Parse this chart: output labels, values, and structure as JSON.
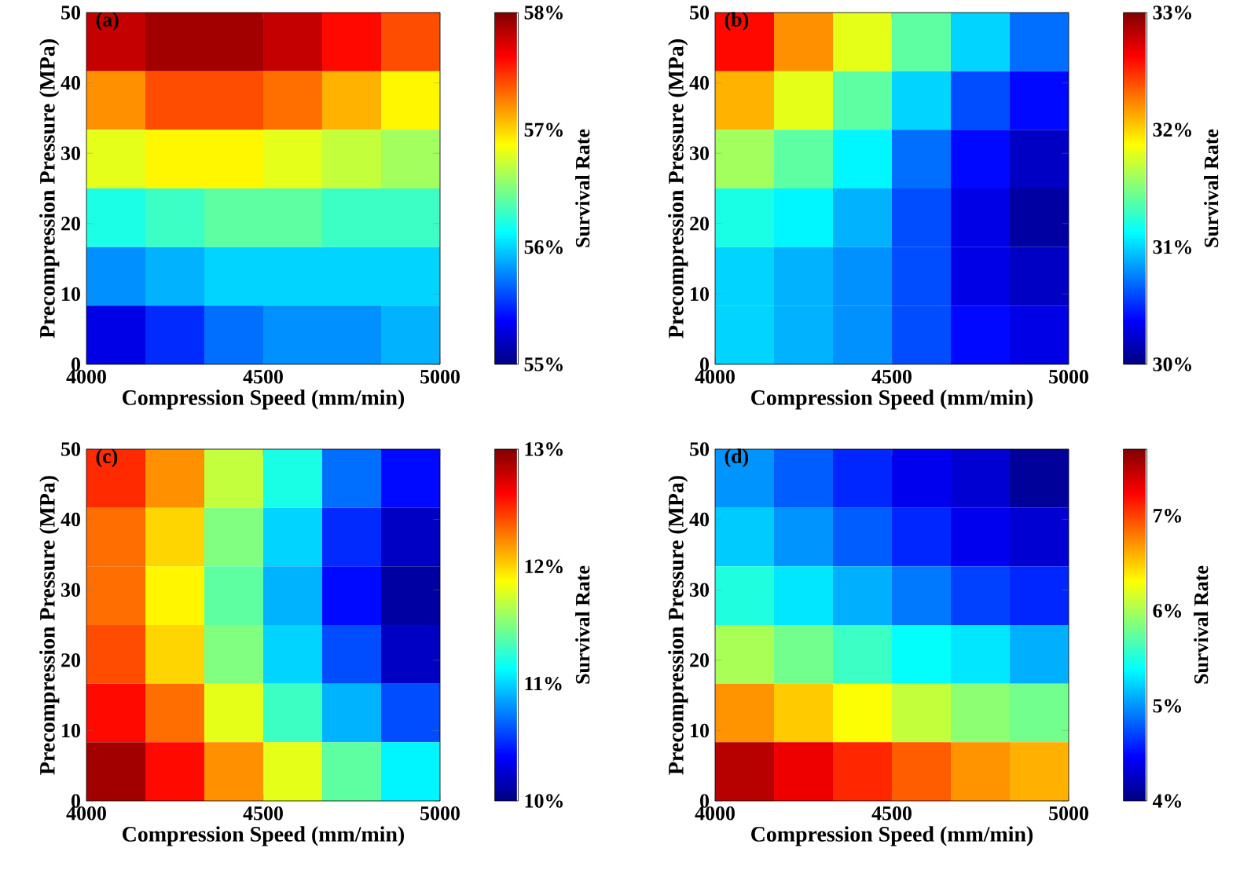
{
  "chart_data": [
    {
      "type": "heatmap",
      "title": "(a)",
      "xlabel": "Compression Speed (mm/min)",
      "ylabel": "Precompression Pressure (MPa)",
      "clabel": "Survival Rate",
      "xlim": [
        4000,
        5000
      ],
      "xticks": [
        4000,
        4500,
        5000
      ],
      "ylim": [
        0,
        50
      ],
      "yticks": [
        0,
        10,
        20,
        30,
        40,
        50
      ],
      "cells": [
        [
          57.8,
          57.9,
          57.9,
          57.8,
          57.6,
          57.4
        ],
        [
          57.2,
          57.4,
          57.4,
          57.3,
          57.1,
          56.9
        ],
        [
          56.8,
          56.9,
          56.9,
          56.8,
          56.7,
          56.6
        ],
        [
          56.2,
          56.3,
          56.4,
          56.4,
          56.3,
          56.3
        ],
        [
          55.8,
          55.9,
          56.0,
          56.0,
          56.0,
          56.0
        ],
        [
          55.3,
          55.5,
          55.7,
          55.8,
          55.8,
          55.9
        ]
      ],
      "clim": [
        55,
        58
      ],
      "cticks": [
        {
          "value": 55,
          "label": "55%"
        },
        {
          "value": 56,
          "label": "56%"
        },
        {
          "value": 57,
          "label": "57%"
        },
        {
          "value": 58,
          "label": "58%"
        }
      ]
    },
    {
      "type": "heatmap",
      "title": "(b)",
      "xlabel": "Compression Speed (mm/min)",
      "ylabel": "Precompression Pressure (MPa)",
      "clabel": "Survival Rate",
      "xlim": [
        4000,
        5000
      ],
      "xticks": [
        4000,
        4500,
        5000
      ],
      "ylim": [
        0,
        50
      ],
      "yticks": [
        0,
        10,
        20,
        30,
        40,
        50
      ],
      "cells": [
        [
          32.6,
          32.2,
          31.8,
          31.4,
          31.0,
          30.7
        ],
        [
          32.1,
          31.8,
          31.4,
          31.0,
          30.6,
          30.4
        ],
        [
          31.6,
          31.4,
          31.1,
          30.7,
          30.4,
          30.2
        ],
        [
          31.2,
          31.1,
          30.9,
          30.6,
          30.3,
          30.1
        ],
        [
          31.0,
          30.9,
          30.8,
          30.6,
          30.3,
          30.2
        ],
        [
          31.0,
          30.9,
          30.8,
          30.6,
          30.4,
          30.3
        ]
      ],
      "clim": [
        30,
        33
      ],
      "cticks": [
        {
          "value": 30,
          "label": "30%"
        },
        {
          "value": 31,
          "label": "31%"
        },
        {
          "value": 32,
          "label": "32%"
        },
        {
          "value": 33,
          "label": "33%"
        }
      ]
    },
    {
      "type": "heatmap",
      "title": "(c)",
      "xlabel": "Compression Speed (mm/min)",
      "ylabel": "Precompression Pressure (MPa)",
      "clabel": "Survival Rate",
      "xlim": [
        4000,
        5000
      ],
      "xticks": [
        4000,
        4500,
        5000
      ],
      "ylim": [
        0,
        50
      ],
      "yticks": [
        0,
        10,
        20,
        30,
        40,
        50
      ],
      "cells": [
        [
          12.5,
          12.2,
          11.7,
          11.2,
          10.7,
          10.4
        ],
        [
          12.3,
          12.0,
          11.5,
          11.0,
          10.5,
          10.2
        ],
        [
          12.3,
          11.9,
          11.4,
          10.9,
          10.4,
          10.1
        ],
        [
          12.4,
          12.0,
          11.5,
          11.0,
          10.6,
          10.2
        ],
        [
          12.6,
          12.3,
          11.8,
          11.3,
          10.9,
          10.6
        ],
        [
          12.9,
          12.6,
          12.2,
          11.8,
          11.4,
          11.1
        ]
      ],
      "clim": [
        10,
        13
      ],
      "cticks": [
        {
          "value": 10,
          "label": "10%"
        },
        {
          "value": 11,
          "label": "11%"
        },
        {
          "value": 12,
          "label": "12%"
        },
        {
          "value": 13,
          "label": "13%"
        }
      ]
    },
    {
      "type": "heatmap",
      "title": "(d)",
      "xlabel": "Compression Speed (mm/min)",
      "ylabel": "Precompression Pressure (MPa)",
      "clabel": "Survival Rate",
      "xlim": [
        4000,
        5000
      ],
      "xticks": [
        4000,
        4500,
        5000
      ],
      "ylim": [
        0,
        50
      ],
      "yticks": [
        0,
        10,
        20,
        30,
        40,
        50
      ],
      "cells": [
        [
          5.0,
          4.8,
          4.6,
          4.4,
          4.3,
          4.1
        ],
        [
          5.2,
          5.0,
          4.8,
          4.6,
          4.4,
          4.3
        ],
        [
          5.5,
          5.3,
          5.1,
          4.9,
          4.7,
          4.6
        ],
        [
          6.0,
          5.8,
          5.6,
          5.4,
          5.3,
          5.1
        ],
        [
          6.7,
          6.5,
          6.3,
          6.1,
          5.9,
          5.8
        ],
        [
          7.5,
          7.3,
          7.1,
          6.9,
          6.7,
          6.6
        ]
      ],
      "clim": [
        4,
        7.7
      ],
      "cticks": [
        {
          "value": 4,
          "label": "4%"
        },
        {
          "value": 5,
          "label": "5%"
        },
        {
          "value": 6,
          "label": "6%"
        },
        {
          "value": 7,
          "label": "7%"
        }
      ]
    }
  ]
}
